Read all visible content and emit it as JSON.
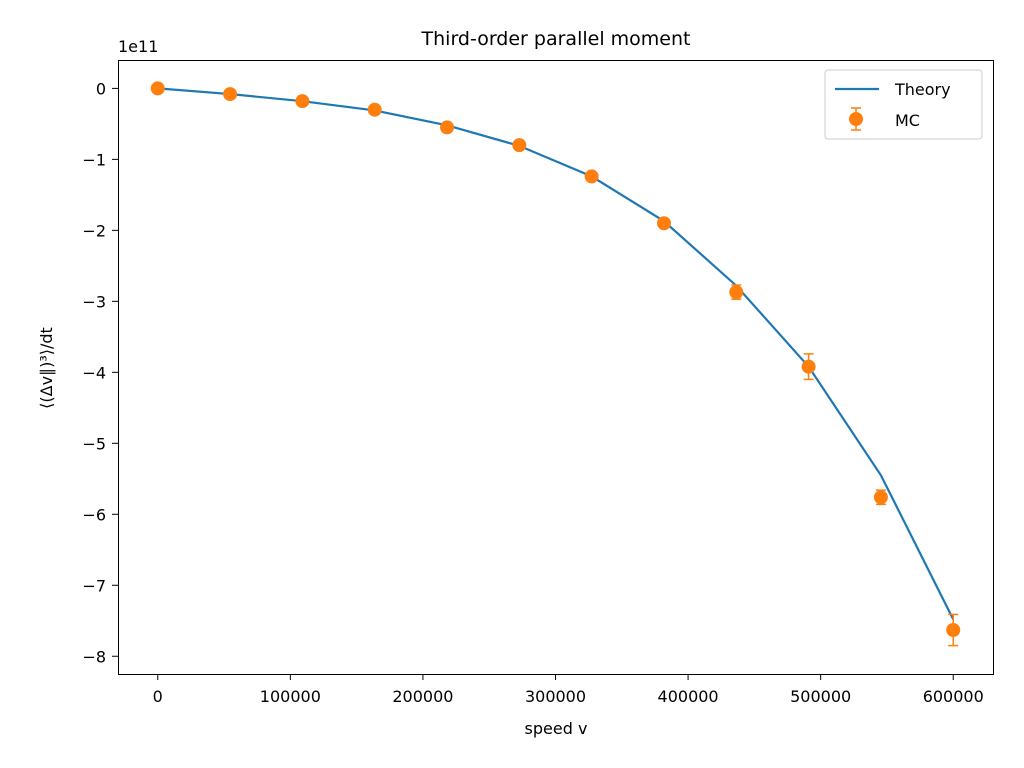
{
  "chart_data": {
    "type": "line",
    "title": "Third-order parallel moment",
    "xlabel": "speed v",
    "ylabel": "⟨(Δv∥)³⟩/dt",
    "y_offset_label": "1e11",
    "xlim": [
      -30000,
      630000
    ],
    "ylim": [
      -8.25,
      0.4
    ],
    "x_ticks": [
      0,
      100000,
      200000,
      300000,
      400000,
      500000,
      600000
    ],
    "x_tick_labels": [
      "0",
      "100000",
      "200000",
      "300000",
      "400000",
      "500000",
      "600000"
    ],
    "y_ticks": [
      0,
      -1,
      -2,
      -3,
      -4,
      -5,
      -6,
      -7,
      -8
    ],
    "y_tick_labels": [
      "0",
      "−1",
      "−2",
      "−3",
      "−4",
      "−5",
      "−6",
      "−7",
      "−8"
    ],
    "grid": false,
    "legend_position": "top-right",
    "series": [
      {
        "name": "Theory",
        "kind": "line",
        "color": "#1f77b4",
        "x": [
          0,
          54545,
          109091,
          163636,
          218182,
          272727,
          327273,
          381818,
          436364,
          490909,
          545455,
          600000
        ],
        "y": [
          0,
          -0.08,
          -0.18,
          -0.31,
          -0.52,
          -0.81,
          -1.24,
          -1.87,
          -2.78,
          -3.92,
          -5.45,
          -7.48
        ]
      },
      {
        "name": "MC",
        "kind": "errorbar",
        "color": "#ff7f0e",
        "x": [
          0,
          54545,
          109091,
          163636,
          218182,
          272727,
          327273,
          381818,
          436364,
          490909,
          545455,
          600000
        ],
        "y": [
          0,
          -0.08,
          -0.18,
          -0.3,
          -0.55,
          -0.8,
          -1.24,
          -1.9,
          -2.87,
          -3.92,
          -5.76,
          -7.63
        ],
        "yerr": [
          0.01,
          0.01,
          0.01,
          0.01,
          0.02,
          0.03,
          0.04,
          0.06,
          0.1,
          0.18,
          0.1,
          0.22
        ]
      }
    ]
  }
}
